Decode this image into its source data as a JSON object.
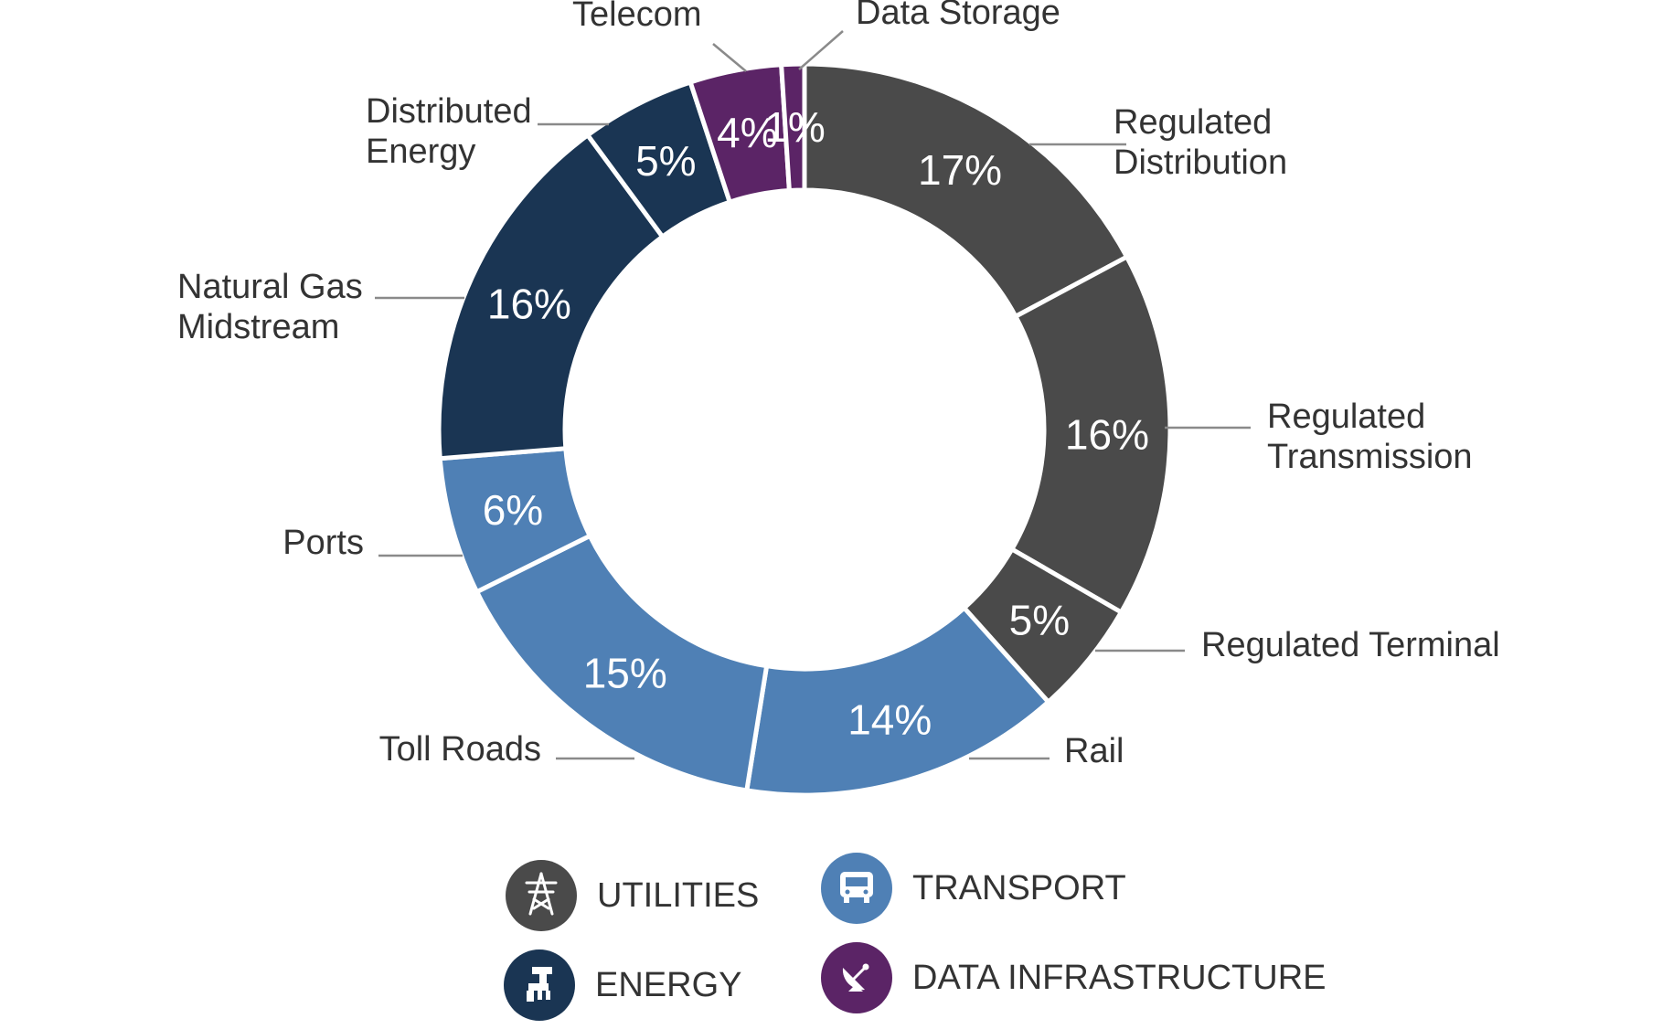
{
  "chart_data": {
    "type": "pie",
    "donut": true,
    "slices": [
      {
        "name": "Regulated Distribution",
        "label_lines": [
          "Regulated",
          "Distribution"
        ],
        "value": 17,
        "label": "17%",
        "group": "utilities"
      },
      {
        "name": "Regulated Transmission",
        "label_lines": [
          "Regulated",
          "Transmission"
        ],
        "value": 16,
        "label": "16%",
        "group": "utilities"
      },
      {
        "name": "Regulated Terminal",
        "label_lines": [
          "Regulated Terminal"
        ],
        "value": 5,
        "label": "5%",
        "group": "utilities"
      },
      {
        "name": "Rail",
        "label_lines": [
          "Rail"
        ],
        "value": 14,
        "label": "14%",
        "group": "transport"
      },
      {
        "name": "Toll Roads",
        "label_lines": [
          "Toll Roads"
        ],
        "value": 15,
        "label": "15%",
        "group": "transport"
      },
      {
        "name": "Ports",
        "label_lines": [
          "Ports"
        ],
        "value": 6,
        "label": "6%",
        "group": "transport"
      },
      {
        "name": "Natural Gas Midstream",
        "label_lines": [
          "Natural Gas",
          "Midstream"
        ],
        "value": 16,
        "label": "16%",
        "group": "energy"
      },
      {
        "name": "Distributed Energy",
        "label_lines": [
          "Distributed",
          "Energy"
        ],
        "value": 5,
        "label": "5%",
        "group": "energy"
      },
      {
        "name": "Telecom",
        "label_lines": [
          "Telecom"
        ],
        "value": 4,
        "label": "4%",
        "group": "data"
      },
      {
        "name": "Data Storage",
        "label_lines": [
          "Data Storage"
        ],
        "value": 1,
        "label": "1%",
        "group": "data"
      }
    ],
    "legend": [
      {
        "key": "utilities",
        "label": "UTILITIES",
        "icon": "transmission-tower-icon",
        "color": "#4a4a4a"
      },
      {
        "key": "transport",
        "label": "TRANSPORT",
        "icon": "rail-car-icon",
        "color": "#4f80b5"
      },
      {
        "key": "energy",
        "label": "ENERGY",
        "icon": "gas-pipeline-icon",
        "color": "#1a3553"
      },
      {
        "key": "data",
        "label": "DATA INFRASTRUCTURE",
        "icon": "satellite-dish-icon",
        "color": "#5b2466"
      }
    ],
    "legend_placement": "bottom"
  },
  "colors": {
    "utilities": "#4a4a4a",
    "transport": "#4f80b5",
    "energy": "#1a3553",
    "data": "#5b2466"
  }
}
